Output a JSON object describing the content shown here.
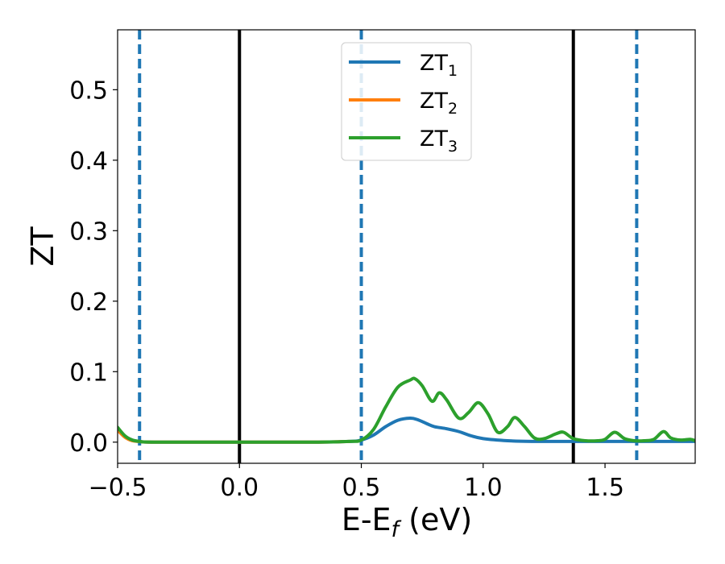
{
  "chart_data": {
    "type": "line",
    "xlabel_main": "E-E",
    "xlabel_sub": "f",
    "xlabel_unit": " (eV)",
    "ylabel": "ZT",
    "xlim": [
      -0.5,
      1.87
    ],
    "ylim": [
      -0.03,
      0.585
    ],
    "xticks": [
      -0.5,
      0.0,
      0.5,
      1.0,
      1.5
    ],
    "xtick_labels": [
      "−0.5",
      "0.0",
      "0.5",
      "1.0",
      "1.5"
    ],
    "yticks": [
      0.0,
      0.1,
      0.2,
      0.3,
      0.4,
      0.5
    ],
    "ytick_labels": [
      "0.0",
      "0.1",
      "0.2",
      "0.3",
      "0.4",
      "0.5"
    ],
    "grid": false,
    "legend_position": "top-center",
    "vlines_solid": [
      0.0,
      1.37
    ],
    "vlines_dashed": [
      -0.41,
      0.5,
      1.63
    ],
    "colors": {
      "series1": "#1f77b4",
      "series2": "#ff7f0e",
      "series3": "#2ca02c",
      "vline_solid": "#000000",
      "vline_dashed": "#1f77b4"
    },
    "series": [
      {
        "name_main": "ZT",
        "name_sub": "1",
        "x": [
          -0.5,
          -0.47,
          -0.44,
          -0.41,
          -0.35,
          0.0,
          0.3,
          0.45,
          0.5,
          0.55,
          0.6,
          0.65,
          0.7,
          0.73,
          0.77,
          0.8,
          0.85,
          0.9,
          0.95,
          1.0,
          1.1,
          1.2,
          1.4,
          1.6,
          1.87
        ],
        "y": [
          0.018,
          0.008,
          0.003,
          0.001,
          0.0,
          0.0,
          0.0,
          0.001,
          0.003,
          0.01,
          0.022,
          0.031,
          0.034,
          0.032,
          0.026,
          0.022,
          0.019,
          0.015,
          0.009,
          0.005,
          0.002,
          0.001,
          0.001,
          0.001,
          0.001
        ]
      },
      {
        "name_main": "ZT",
        "name_sub": "2",
        "x": [
          -0.5,
          -0.47,
          -0.44,
          -0.41,
          -0.35,
          0.0,
          0.3,
          0.45
        ],
        "y": [
          0.017,
          0.007,
          0.002,
          0.001,
          0.0,
          0.0,
          0.0,
          0.001
        ]
      },
      {
        "name_main": "ZT",
        "name_sub": "3",
        "x": [
          -0.5,
          -0.47,
          -0.44,
          -0.41,
          -0.35,
          0.0,
          0.3,
          0.45,
          0.5,
          0.55,
          0.6,
          0.65,
          0.7,
          0.72,
          0.75,
          0.79,
          0.82,
          0.85,
          0.9,
          0.94,
          0.98,
          1.02,
          1.06,
          1.1,
          1.13,
          1.17,
          1.21,
          1.25,
          1.3,
          1.33,
          1.37,
          1.42,
          1.47,
          1.5,
          1.54,
          1.58,
          1.62,
          1.66,
          1.7,
          1.74,
          1.77,
          1.81,
          1.85,
          1.87
        ],
        "y": [
          0.021,
          0.009,
          0.003,
          0.001,
          0.0,
          0.0,
          0.0,
          0.001,
          0.003,
          0.018,
          0.05,
          0.078,
          0.088,
          0.09,
          0.08,
          0.058,
          0.07,
          0.06,
          0.034,
          0.042,
          0.056,
          0.04,
          0.014,
          0.022,
          0.035,
          0.022,
          0.006,
          0.005,
          0.012,
          0.014,
          0.005,
          0.002,
          0.002,
          0.004,
          0.014,
          0.005,
          0.002,
          0.002,
          0.004,
          0.015,
          0.006,
          0.003,
          0.004,
          0.002
        ]
      }
    ]
  }
}
